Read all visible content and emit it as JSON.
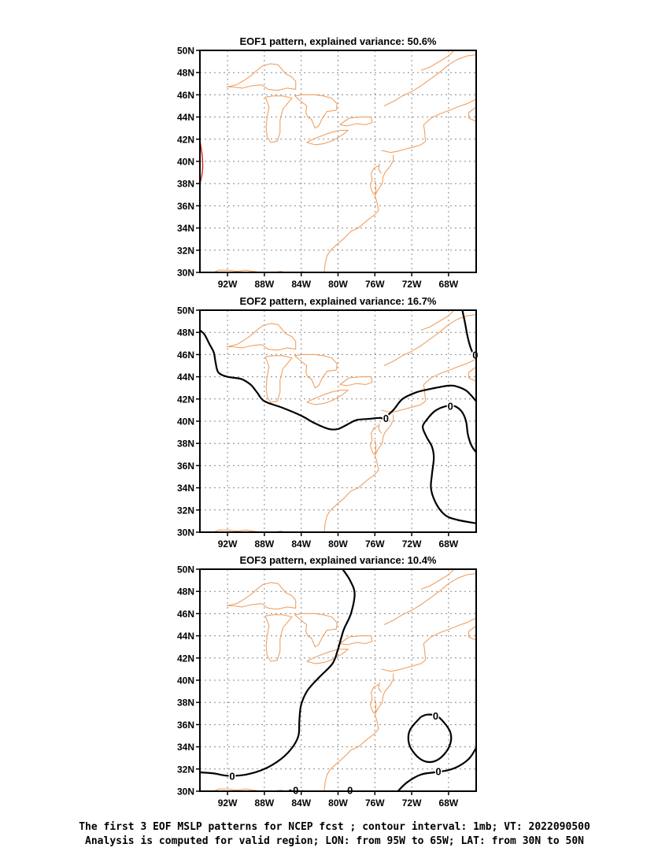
{
  "panels": [
    {
      "title": "EOF1 pattern, explained variance: 50.6%",
      "contours": [
        {
          "color": "#d42020",
          "points": [
            [
              -95,
              41.9
            ],
            [
              -94.75,
              40.5
            ],
            [
              -94.7,
              39.5
            ],
            [
              -94.8,
              38.7
            ],
            [
              -95,
              38.0
            ]
          ]
        }
      ],
      "labels": []
    },
    {
      "title": "EOF2 pattern, explained variance: 16.7%",
      "contours": [
        {
          "color": "#000000",
          "points": [
            [
              -95,
              48.2
            ],
            [
              -94.5,
              47.8
            ],
            [
              -94.0,
              47.0
            ],
            [
              -93.5,
              46.2
            ],
            [
              -93.3,
              45.3
            ],
            [
              -93.0,
              44.4
            ],
            [
              -92.0,
              44.0
            ],
            [
              -90.5,
              43.8
            ],
            [
              -89.5,
              43.3
            ],
            [
              -88.8,
              42.6
            ],
            [
              -88.0,
              41.8
            ],
            [
              -86.0,
              41.2
            ],
            [
              -84.0,
              40.5
            ],
            [
              -82.5,
              39.8
            ],
            [
              -81.0,
              39.3
            ],
            [
              -80.0,
              39.3
            ],
            [
              -79.0,
              39.7
            ],
            [
              -78.0,
              40.1
            ],
            [
              -76.8,
              40.2
            ],
            [
              -75.5,
              40.3
            ],
            [
              -75.0,
              40.3
            ],
            [
              -74.0,
              41.0
            ],
            [
              -73.0,
              42.0
            ],
            [
              -71.5,
              42.6
            ],
            [
              -70.0,
              42.9
            ],
            [
              -68.0,
              43.2
            ],
            [
              -67.0,
              43.1
            ],
            [
              -66.0,
              42.7
            ],
            [
              -65.0,
              41.8
            ]
          ]
        },
        {
          "color": "#000000",
          "points": [
            [
              -66.5,
              50.0
            ],
            [
              -66.2,
              48.8
            ],
            [
              -65.9,
              47.5
            ],
            [
              -65.5,
              46.4
            ],
            [
              -65.0,
              45.8
            ]
          ]
        },
        {
          "color": "#000000",
          "points": [
            [
              -65.0,
              37.2
            ],
            [
              -65.5,
              37.8
            ],
            [
              -65.9,
              38.8
            ],
            [
              -66.1,
              40.0
            ],
            [
              -66.6,
              40.9
            ],
            [
              -67.5,
              41.4
            ],
            [
              -68.5,
              41.3
            ],
            [
              -69.5,
              40.9
            ],
            [
              -70.3,
              40.2
            ],
            [
              -70.8,
              39.5
            ],
            [
              -70.4,
              38.6
            ],
            [
              -69.8,
              37.7
            ],
            [
              -69.6,
              36.7
            ],
            [
              -69.8,
              35.2
            ],
            [
              -69.9,
              33.9
            ],
            [
              -69.3,
              32.5
            ],
            [
              -68.3,
              31.5
            ],
            [
              -67.0,
              31.1
            ],
            [
              -65.0,
              30.8
            ]
          ]
        }
      ],
      "labels": [
        {
          "text": "0",
          "lon": -74.8,
          "lat": 40.3
        },
        {
          "text": "0",
          "lon": -67.8,
          "lat": 41.4
        },
        {
          "text": "0",
          "lon": -65.1,
          "lat": 46.0
        }
      ]
    },
    {
      "title": "EOF3 pattern, explained variance: 10.4%",
      "contours": [
        {
          "color": "#000000",
          "points": [
            [
              -79.5,
              50.0
            ],
            [
              -78.7,
              49.0
            ],
            [
              -78.2,
              47.8
            ],
            [
              -78.6,
              46.0
            ],
            [
              -79.4,
              44.5
            ],
            [
              -80.0,
              42.8
            ],
            [
              -80.6,
              41.5
            ],
            [
              -82.0,
              40.3
            ],
            [
              -83.3,
              39.1
            ],
            [
              -84.0,
              37.8
            ],
            [
              -84.2,
              36.4
            ],
            [
              -84.3,
              35.0
            ],
            [
              -85.0,
              33.9
            ],
            [
              -86.2,
              32.9
            ],
            [
              -88.0,
              32.0
            ],
            [
              -90.0,
              31.5
            ],
            [
              -92.0,
              31.4
            ],
            [
              -93.5,
              31.6
            ],
            [
              -95.0,
              31.7
            ]
          ]
        },
        {
          "color": "#000000",
          "points": [
            [
              -85.0,
              30.0
            ],
            [
              -85.3,
              30.1
            ]
          ]
        },
        {
          "color": "#000000",
          "points": [
            [
              -78.8,
              30.0
            ],
            [
              -79.0,
              30.2
            ]
          ]
        },
        {
          "color": "#000000",
          "points": [
            [
              -71.0,
              36.7
            ],
            [
              -70.3,
              36.9
            ],
            [
              -69.3,
              36.8
            ],
            [
              -68.5,
              36.2
            ],
            [
              -67.8,
              35.3
            ],
            [
              -67.8,
              34.3
            ],
            [
              -68.5,
              33.3
            ],
            [
              -69.5,
              32.7
            ],
            [
              -70.6,
              32.7
            ],
            [
              -71.6,
              33.3
            ],
            [
              -72.3,
              34.3
            ],
            [
              -72.2,
              35.5
            ],
            [
              -71.0,
              36.7
            ]
          ]
        },
        {
          "color": "#000000",
          "points": [
            [
              -73.5,
              30.0
            ],
            [
              -72.5,
              30.8
            ],
            [
              -71.0,
              31.5
            ],
            [
              -69.5,
              31.7
            ],
            [
              -68.0,
              31.9
            ],
            [
              -66.8,
              32.3
            ],
            [
              -65.7,
              33.0
            ],
            [
              -65.0,
              33.9
            ]
          ]
        }
      ],
      "labels": [
        {
          "text": "0",
          "lon": -91.5,
          "lat": 31.4
        },
        {
          "text": "0",
          "lon": -84.6,
          "lat": 30.1
        },
        {
          "text": "0",
          "lon": -78.7,
          "lat": 30.1
        },
        {
          "text": "0",
          "lon": -69.4,
          "lat": 36.8
        },
        {
          "text": "0",
          "lon": -69.1,
          "lat": 31.8
        }
      ]
    }
  ],
  "lon_ticks": [
    -92,
    -88,
    -84,
    -80,
    -76,
    -72,
    -68
  ],
  "lat_ticks": [
    30,
    32,
    34,
    36,
    38,
    40,
    42,
    44,
    46,
    48,
    50
  ],
  "lon_tick_labels": [
    "92W",
    "88W",
    "84W",
    "80W",
    "76W",
    "72W",
    "68W"
  ],
  "lat_tick_labels": [
    "30N",
    "32N",
    "34N",
    "36N",
    "38N",
    "40N",
    "42N",
    "44N",
    "46N",
    "48N",
    "50N"
  ],
  "extent": {
    "lon_min": -95,
    "lon_max": -65,
    "lat_min": 30,
    "lat_max": 50
  },
  "coastline_color": "#f0a060",
  "caption": {
    "line1": "The first 3 EOF MSLP patterns for NCEP fcst ; contour interval: 1mb; VT: 2022090500",
    "line2": "Analysis is computed for valid region; LON: from 95W to 65W; LAT: from 30N to 50N"
  }
}
